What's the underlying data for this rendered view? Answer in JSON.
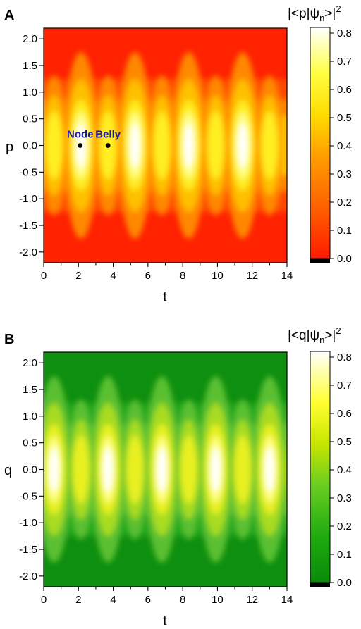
{
  "chart_data": [
    {
      "panel": "A",
      "type": "heatmap",
      "title": "",
      "xlabel": "t",
      "ylabel": "p",
      "xlim": [
        0,
        14
      ],
      "ylim": [
        -2.2,
        2.2
      ],
      "xticks": [
        "0",
        "2",
        "4",
        "6",
        "8",
        "10",
        "12",
        "14"
      ],
      "yticks": [
        "2.0",
        "1.5",
        "1.0",
        "0.5",
        "0.0",
        "-0.5",
        "-1.0",
        "-1.5",
        "-2.0"
      ],
      "colorbar": {
        "title": "|<p|ψn>|2",
        "ticks": [
          "0.8",
          "0.7",
          "0.6",
          "0.5",
          "0.4",
          "0.3",
          "0.2",
          "0.1",
          "0.0"
        ],
        "range": [
          0,
          0.82
        ],
        "colors": [
          "#ff1a00",
          "#ff5a00",
          "#ffa000",
          "#ffdc00",
          "#ffff40",
          "#ffffff"
        ]
      },
      "bright_spots_t": [
        2.15,
        5.25,
        8.35,
        11.45
      ],
      "period": 3.1,
      "annotations": [
        {
          "label": "Node",
          "t": 2.1,
          "p": 0.0,
          "color": "#1a1aaa"
        },
        {
          "label": "Belly",
          "t": 3.7,
          "p": 0.0,
          "color": "#1a1aaa"
        }
      ]
    },
    {
      "panel": "B",
      "type": "heatmap",
      "title": "",
      "xlabel": "t",
      "ylabel": "q",
      "xlim": [
        0,
        14
      ],
      "ylim": [
        -2.2,
        2.2
      ],
      "xticks": [
        "0",
        "2",
        "4",
        "6",
        "8",
        "10",
        "12",
        "14"
      ],
      "yticks": [
        "2.0",
        "1.5",
        "1.0",
        "0.5",
        "0.0",
        "-0.5",
        "-1.0",
        "-1.5",
        "-2.0"
      ],
      "colorbar": {
        "title": "|<q|ψn>|2",
        "ticks": [
          "0.8",
          "0.7",
          "0.6",
          "0.5",
          "0.4",
          "0.3",
          "0.2",
          "0.1",
          "0.0"
        ],
        "range": [
          0,
          0.82
        ],
        "colors": [
          "#0a8a0a",
          "#1faa10",
          "#6acd20",
          "#c8e600",
          "#ffff30",
          "#ffffff"
        ]
      },
      "bright_spots_t": [
        0.6,
        3.7,
        6.8,
        9.9,
        13.0
      ],
      "period": 3.1,
      "annotations": []
    }
  ]
}
